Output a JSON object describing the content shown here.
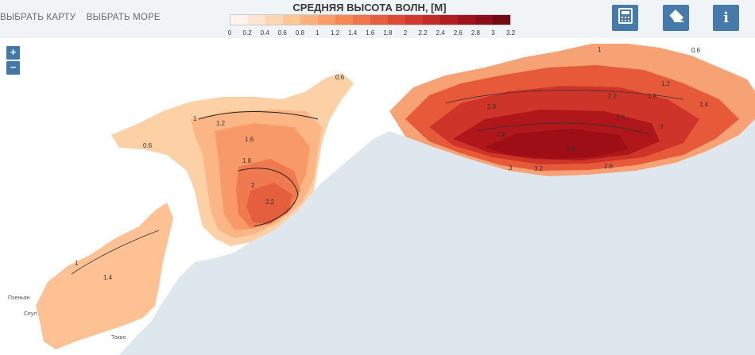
{
  "nav": {
    "select_map": "ВЫБРАТЬ КАРТУ",
    "select_sea": "ВЫБРАТЬ МОРЕ"
  },
  "legend": {
    "title": "СРЕДНЯЯ ВЫСОТА ВОЛН, [М]",
    "ticks": [
      "0",
      "0.2",
      "0.4",
      "0.6",
      "0.8",
      "1",
      "1.2",
      "1.4",
      "1.6",
      "1.8",
      "2",
      "2.2",
      "2.4",
      "2.6",
      "2.8",
      "3",
      "3.2"
    ],
    "colors": [
      "#fff5eb",
      "#fee6ce",
      "#fdd5b1",
      "#fdc593",
      "#fdb07a",
      "#fc9b63",
      "#f68651",
      "#ef7246",
      "#e65a39",
      "#dc4531",
      "#cf3428",
      "#c02620",
      "#b0171a",
      "#9d0e16",
      "#860811",
      "#6e030c"
    ]
  },
  "tools": [
    "calculator-icon",
    "eraser-icon",
    "info-icon"
  ],
  "tool_labels": {
    "info": "i"
  },
  "zoom": {
    "in": "+",
    "out": "−"
  },
  "contour_labels": {
    "okhotsk": [
      "0.6",
      "0.6",
      "1",
      "1.2",
      "1.6",
      "1.8",
      "2",
      "2.2"
    ],
    "japan": [
      "1",
      "1.4"
    ],
    "bering": [
      "0.6",
      "1",
      "1.2",
      "1.4",
      "1.8",
      "2.2",
      "2.8",
      "2.6",
      "2.8",
      "2.8",
      "3",
      "3.2",
      "3",
      "2.6"
    ]
  },
  "cities": [
    "Пхеньян",
    "Сеул",
    "Токио"
  ]
}
